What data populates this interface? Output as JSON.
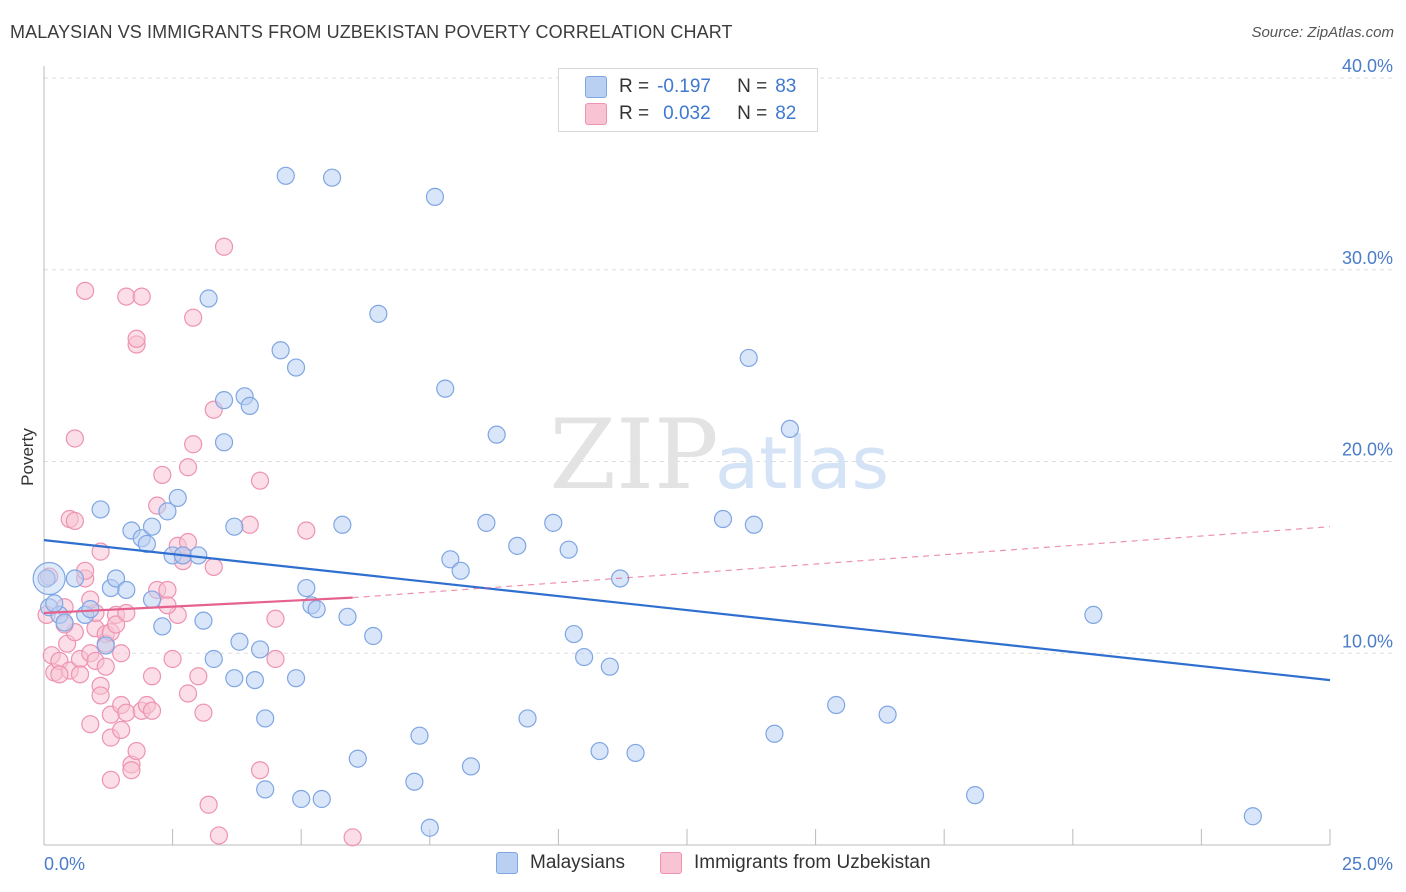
{
  "title": "MALAYSIAN VS IMMIGRANTS FROM UZBEKISTAN POVERTY CORRELATION CHART",
  "source": "Source: ZipAtlas.com",
  "watermark": {
    "zip": "ZIP",
    "atlas": "atlas"
  },
  "legend": {
    "r_label": "R =",
    "n_label": "N =",
    "blue": {
      "r": "-0.197",
      "n": "83"
    },
    "pink": {
      "r": "0.032",
      "n": "82"
    }
  },
  "colors": {
    "blue_fill": "#b9d0f3",
    "blue_stroke": "#7fa6e3",
    "blue_line": "#2f6fd0",
    "pink_fill": "#f8c3d3",
    "pink_stroke": "#ee93b0",
    "pink_line": "#e5628e",
    "tick_text": "#4a7cc9",
    "grid": "#dddddd"
  },
  "chart_data": {
    "type": "scatter",
    "title": "MALAYSIAN VS IMMIGRANTS FROM UZBEKISTAN POVERTY CORRELATION CHART",
    "xlabel": "",
    "ylabel": "Poverty",
    "xlim": [
      0,
      25
    ],
    "ylim": [
      0,
      40
    ],
    "x_tick_labels": [
      "0.0%",
      "25.0%"
    ],
    "y_ticks": [
      10,
      20,
      30,
      40
    ],
    "y_tick_labels": [
      "10.0%",
      "20.0%",
      "30.0%",
      "40.0%"
    ],
    "grid": true,
    "legend_position": "top-center",
    "series": [
      {
        "name": "Malaysians",
        "color": "#7fa6e3",
        "trend": {
          "x": [
            0,
            25
          ],
          "y": [
            15.9,
            8.6
          ],
          "dashed_after": null
        },
        "points": [
          [
            0.05,
            13.9
          ],
          [
            0.1,
            12.4
          ],
          [
            0.3,
            12.0
          ],
          [
            0.4,
            11.6
          ],
          [
            0.6,
            13.9
          ],
          [
            0.8,
            12.0
          ],
          [
            0.9,
            12.3
          ],
          [
            1.1,
            17.5
          ],
          [
            1.2,
            10.4
          ],
          [
            1.3,
            13.4
          ],
          [
            1.4,
            13.9
          ],
          [
            1.6,
            13.3
          ],
          [
            1.7,
            16.4
          ],
          [
            1.9,
            16.0
          ],
          [
            2.0,
            15.7
          ],
          [
            2.1,
            16.6
          ],
          [
            2.3,
            11.4
          ],
          [
            2.4,
            17.4
          ],
          [
            2.5,
            15.1
          ],
          [
            2.6,
            18.1
          ],
          [
            2.7,
            15.1
          ],
          [
            3.0,
            15.1
          ],
          [
            3.1,
            11.7
          ],
          [
            3.2,
            28.5
          ],
          [
            3.3,
            9.7
          ],
          [
            3.5,
            21.0
          ],
          [
            3.5,
            23.2
          ],
          [
            3.7,
            16.6
          ],
          [
            3.7,
            8.7
          ],
          [
            3.9,
            23.4
          ],
          [
            4.0,
            22.9
          ],
          [
            4.1,
            8.6
          ],
          [
            4.2,
            10.2
          ],
          [
            4.3,
            6.6
          ],
          [
            4.3,
            2.9
          ],
          [
            4.6,
            25.8
          ],
          [
            4.7,
            34.9
          ],
          [
            4.9,
            24.9
          ],
          [
            4.9,
            8.7
          ],
          [
            5.0,
            2.4
          ],
          [
            5.1,
            13.4
          ],
          [
            5.2,
            12.5
          ],
          [
            5.3,
            12.3
          ],
          [
            5.4,
            2.4
          ],
          [
            5.6,
            34.8
          ],
          [
            5.8,
            16.7
          ],
          [
            5.9,
            11.9
          ],
          [
            6.1,
            4.5
          ],
          [
            6.4,
            10.9
          ],
          [
            6.5,
            27.7
          ],
          [
            7.2,
            3.3
          ],
          [
            7.3,
            5.7
          ],
          [
            7.5,
            0.9
          ],
          [
            7.6,
            33.8
          ],
          [
            7.8,
            23.8
          ],
          [
            7.9,
            14.9
          ],
          [
            8.1,
            14.3
          ],
          [
            8.3,
            4.1
          ],
          [
            8.6,
            16.8
          ],
          [
            8.8,
            21.4
          ],
          [
            9.2,
            15.6
          ],
          [
            9.4,
            6.6
          ],
          [
            9.9,
            16.8
          ],
          [
            10.2,
            15.4
          ],
          [
            10.3,
            11.0
          ],
          [
            10.5,
            9.8
          ],
          [
            10.8,
            4.9
          ],
          [
            11.0,
            9.3
          ],
          [
            11.2,
            13.9
          ],
          [
            11.5,
            4.8
          ],
          [
            13.2,
            17.0
          ],
          [
            13.7,
            25.4
          ],
          [
            13.8,
            16.7
          ],
          [
            14.2,
            5.8
          ],
          [
            14.5,
            21.7
          ],
          [
            15.4,
            7.3
          ],
          [
            16.4,
            6.8
          ],
          [
            18.1,
            2.6
          ],
          [
            20.4,
            12.0
          ],
          [
            23.5,
            1.5
          ],
          [
            0.2,
            12.6
          ],
          [
            2.1,
            12.8
          ],
          [
            3.8,
            10.6
          ]
        ]
      },
      {
        "name": "Immigrants from Uzbekistan",
        "color": "#ee93b0",
        "trend": {
          "x": [
            0,
            6.0
          ],
          "y": [
            12.1,
            12.9
          ],
          "dashed_to": [
            25,
            16.6
          ]
        },
        "points": [
          [
            0.05,
            12.0
          ],
          [
            0.1,
            14.0
          ],
          [
            0.15,
            9.9
          ],
          [
            0.2,
            9.0
          ],
          [
            0.3,
            9.6
          ],
          [
            0.4,
            12.4
          ],
          [
            0.45,
            10.5
          ],
          [
            0.5,
            9.1
          ],
          [
            0.5,
            17.0
          ],
          [
            0.6,
            11.1
          ],
          [
            0.6,
            21.2
          ],
          [
            0.6,
            16.9
          ],
          [
            0.7,
            9.7
          ],
          [
            0.7,
            8.9
          ],
          [
            0.8,
            13.9
          ],
          [
            0.8,
            14.3
          ],
          [
            0.8,
            28.9
          ],
          [
            0.9,
            6.3
          ],
          [
            0.9,
            10.0
          ],
          [
            1.0,
            11.3
          ],
          [
            1.0,
            9.6
          ],
          [
            1.0,
            12.1
          ],
          [
            1.1,
            8.3
          ],
          [
            1.1,
            7.8
          ],
          [
            1.1,
            15.3
          ],
          [
            1.2,
            11.0
          ],
          [
            1.2,
            10.5
          ],
          [
            1.3,
            11.1
          ],
          [
            1.3,
            6.8
          ],
          [
            1.3,
            5.6
          ],
          [
            1.3,
            3.4
          ],
          [
            1.4,
            12.0
          ],
          [
            1.4,
            11.5
          ],
          [
            1.5,
            7.3
          ],
          [
            1.5,
            10.0
          ],
          [
            1.5,
            6.0
          ],
          [
            1.6,
            28.6
          ],
          [
            1.6,
            6.9
          ],
          [
            1.7,
            4.2
          ],
          [
            1.7,
            3.9
          ],
          [
            1.8,
            4.9
          ],
          [
            1.8,
            26.1
          ],
          [
            1.8,
            26.4
          ],
          [
            1.9,
            7.0
          ],
          [
            1.9,
            28.6
          ],
          [
            2.0,
            7.3
          ],
          [
            2.1,
            7.0
          ],
          [
            2.1,
            8.8
          ],
          [
            2.2,
            13.3
          ],
          [
            2.2,
            17.7
          ],
          [
            2.3,
            19.3
          ],
          [
            2.4,
            13.3
          ],
          [
            2.5,
            9.7
          ],
          [
            2.6,
            12.0
          ],
          [
            2.6,
            15.6
          ],
          [
            2.7,
            14.8
          ],
          [
            2.8,
            15.8
          ],
          [
            2.8,
            19.7
          ],
          [
            2.8,
            7.9
          ],
          [
            2.9,
            20.9
          ],
          [
            2.9,
            27.5
          ],
          [
            3.0,
            8.8
          ],
          [
            3.1,
            6.9
          ],
          [
            3.2,
            2.1
          ],
          [
            3.3,
            22.7
          ],
          [
            3.3,
            14.5
          ],
          [
            3.4,
            0.5
          ],
          [
            3.5,
            31.2
          ],
          [
            4.0,
            16.7
          ],
          [
            4.2,
            19.0
          ],
          [
            4.2,
            3.9
          ],
          [
            4.5,
            11.8
          ],
          [
            4.5,
            9.7
          ],
          [
            5.1,
            16.4
          ],
          [
            6.0,
            0.4
          ],
          [
            0.3,
            8.9
          ],
          [
            0.9,
            12.8
          ],
          [
            1.6,
            12.1
          ],
          [
            2.4,
            12.5
          ],
          [
            2.7,
            15.1
          ],
          [
            0.4,
            11.5
          ],
          [
            1.2,
            9.3
          ]
        ]
      }
    ]
  },
  "bottom_legend": {
    "blue_label": "Malaysians",
    "pink_label": "Immigrants from Uzbekistan"
  }
}
